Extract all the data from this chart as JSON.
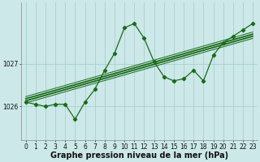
{
  "xlabel": "Graphe pression niveau de la mer (hPa)",
  "x_values": [
    0,
    1,
    2,
    3,
    4,
    5,
    6,
    7,
    8,
    9,
    10,
    11,
    12,
    13,
    14,
    15,
    16,
    17,
    18,
    19,
    20,
    21,
    22,
    23
  ],
  "y_main": [
    1026.1,
    1026.05,
    1026.0,
    1026.05,
    1026.05,
    1025.7,
    1026.1,
    1026.4,
    1026.85,
    1027.25,
    1027.85,
    1027.95,
    1027.6,
    1027.05,
    1026.7,
    1026.6,
    1026.65,
    1026.85,
    1026.6,
    1027.2,
    1027.5,
    1027.65,
    1027.8,
    1027.95
  ],
  "trend_lines": [
    [
      1026.08,
      1027.6
    ],
    [
      1026.13,
      1027.65
    ],
    [
      1026.18,
      1027.7
    ],
    [
      1026.23,
      1027.75
    ]
  ],
  "trend_x": [
    0,
    23
  ],
  "line_color": "#1a6b1a",
  "bg_color": "#cce8e8",
  "grid_color": "#aad0d0",
  "ylim": [
    1025.2,
    1028.45
  ],
  "xlim": [
    -0.5,
    23.5
  ],
  "yticks": [
    1026,
    1027
  ],
  "xticks": [
    0,
    1,
    2,
    3,
    4,
    5,
    6,
    7,
    8,
    9,
    10,
    11,
    12,
    13,
    14,
    15,
    16,
    17,
    18,
    19,
    20,
    21,
    22,
    23
  ],
  "tick_fontsize": 5.5,
  "label_fontsize": 7.0
}
